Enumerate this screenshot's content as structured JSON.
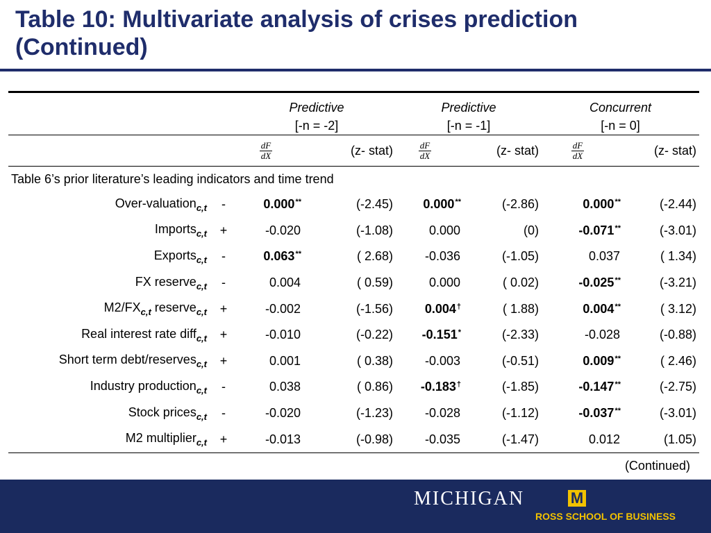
{
  "title": "Table 10: Multivariate analysis of crises prediction (Continued)",
  "columns": [
    {
      "name": "Predictive",
      "n": "[-n = -2]"
    },
    {
      "name": "Predictive",
      "n": "[-n = -1]"
    },
    {
      "name": "Concurrent",
      "n": "[-n = 0]"
    }
  ],
  "subheader": {
    "df_num": "dF",
    "df_den": "dX",
    "z_label": "(z- stat)"
  },
  "section_label": "Table 6’s prior literature’s leading indicators and time trend",
  "subscript": "c,t",
  "rows": [
    {
      "label": "Over-valuation",
      "sign": "-",
      "cells": [
        {
          "v": "0.000",
          "bold": true,
          "star": "**",
          "z": "(-2.45)"
        },
        {
          "v": "0.000",
          "bold": true,
          "star": "**",
          "z": "(-2.86)"
        },
        {
          "v": "0.000",
          "bold": true,
          "star": "**",
          "z": "(-2.44)"
        }
      ]
    },
    {
      "label": "Imports",
      "sign": "+",
      "cells": [
        {
          "v": "-0.020",
          "bold": false,
          "star": "",
          "z": "(-1.08)"
        },
        {
          "v": "0.000",
          "bold": false,
          "star": "",
          "z": "(0)"
        },
        {
          "v": "-0.071",
          "bold": true,
          "star": "**",
          "z": "(-3.01)"
        }
      ]
    },
    {
      "label": "Exports",
      "sign": "-",
      "cells": [
        {
          "v": "0.063",
          "bold": true,
          "star": "**",
          "z": "( 2.68)"
        },
        {
          "v": "-0.036",
          "bold": false,
          "star": "",
          "z": "(-1.05)"
        },
        {
          "v": "0.037",
          "bold": false,
          "star": "",
          "z": "( 1.34)"
        }
      ]
    },
    {
      "label": "FX reserve",
      "sign": "-",
      "cells": [
        {
          "v": "0.004",
          "bold": false,
          "star": "",
          "z": "( 0.59)"
        },
        {
          "v": "0.000",
          "bold": false,
          "star": "",
          "z": "( 0.02)"
        },
        {
          "v": "-0.025",
          "bold": true,
          "star": "**",
          "z": "(-3.21)"
        }
      ]
    },
    {
      "label": "M2/FX",
      "label2": " reserve",
      "sign": "+",
      "cells": [
        {
          "v": "-0.002",
          "bold": false,
          "star": "",
          "z": "(-1.56)"
        },
        {
          "v": "0.004",
          "bold": true,
          "star": "†",
          "z": "( 1.88)"
        },
        {
          "v": "0.004",
          "bold": true,
          "star": "**",
          "z": "( 3.12)"
        }
      ]
    },
    {
      "label": "Real interest rate diff",
      "sign": "+",
      "cells": [
        {
          "v": "-0.010",
          "bold": false,
          "star": "",
          "z": "(-0.22)"
        },
        {
          "v": "-0.151",
          "bold": true,
          "star": "*",
          "z": "(-2.33)"
        },
        {
          "v": "-0.028",
          "bold": false,
          "star": "",
          "z": "(-0.88)"
        }
      ]
    },
    {
      "label": "Short term debt/reserves",
      "sign": "+",
      "cells": [
        {
          "v": "0.001",
          "bold": false,
          "star": "",
          "z": "( 0.38)"
        },
        {
          "v": "-0.003",
          "bold": false,
          "star": "",
          "z": "(-0.51)"
        },
        {
          "v": "0.009",
          "bold": true,
          "star": "**",
          "z": "( 2.46)"
        }
      ]
    },
    {
      "label": "Industry production",
      "sign": "-",
      "cells": [
        {
          "v": "0.038",
          "bold": false,
          "star": "",
          "z": "( 0.86)"
        },
        {
          "v": "-0.183",
          "bold": true,
          "star": "†",
          "z": "(-1.85)"
        },
        {
          "v": "-0.147",
          "bold": true,
          "star": "**",
          "z": "(-2.75)"
        }
      ]
    },
    {
      "label": "Stock prices",
      "sign": "-",
      "cells": [
        {
          "v": "-0.020",
          "bold": false,
          "star": "",
          "z": "(-1.23)"
        },
        {
          "v": "-0.028",
          "bold": false,
          "star": "",
          "z": "(-1.12)"
        },
        {
          "v": "-0.037",
          "bold": true,
          "star": "**",
          "z": "(-3.01)"
        }
      ]
    },
    {
      "label": "M2 multiplier",
      "sign": "+",
      "cells": [
        {
          "v": "-0.013",
          "bold": false,
          "star": "",
          "z": "(-0.98)"
        },
        {
          "v": "-0.035",
          "bold": false,
          "star": "",
          "z": "(-1.47)"
        },
        {
          "v": "0.012",
          "bold": false,
          "star": "",
          "z": "(1.05)"
        }
      ]
    }
  ],
  "continued": "(Continued)",
  "footer": {
    "logo_text": "MICHIGAN",
    "logo_mark": "M",
    "school": "ROSS SCHOOL OF BUSINESS"
  },
  "colors": {
    "title": "#1f2d6b",
    "footer_bg": "#1a2a5e",
    "maize": "#f2c200"
  }
}
